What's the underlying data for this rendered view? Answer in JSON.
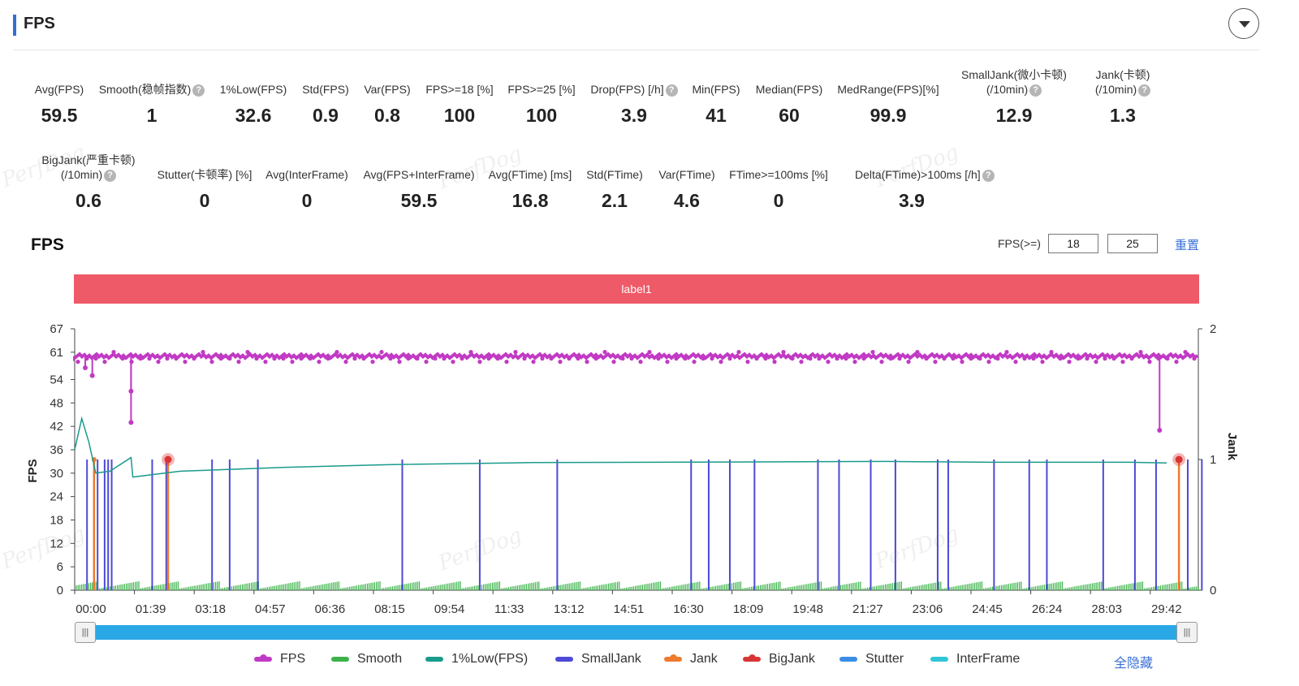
{
  "panel": {
    "title": "FPS"
  },
  "metrics_row1": [
    {
      "label": "Avg(FPS)",
      "value": "59.5",
      "help": false
    },
    {
      "label": "Smooth(稳帧指数)",
      "value": "1",
      "help": true
    },
    {
      "label": "1%Low(FPS)",
      "value": "32.6",
      "help": false
    },
    {
      "label": "Std(FPS)",
      "value": "0.9",
      "help": false
    },
    {
      "label": "Var(FPS)",
      "value": "0.8",
      "help": false
    },
    {
      "label": "FPS>=18 [%]",
      "value": "100",
      "help": false
    },
    {
      "label": "FPS>=25 [%]",
      "value": "100",
      "help": false
    },
    {
      "label": "Drop(FPS) [/h]",
      "value": "3.9",
      "help": true
    },
    {
      "label": "Min(FPS)",
      "value": "41",
      "help": false
    },
    {
      "label": "Median(FPS)",
      "value": "60",
      "help": false
    },
    {
      "label": "MedRange(FPS)[%]",
      "value": "99.9",
      "help": false
    },
    {
      "label": "SmallJank(微小卡顿)",
      "label2": "(/10min)",
      "value": "12.9",
      "help": true
    },
    {
      "label": "Jank(卡顿)",
      "label2": "(/10min)",
      "value": "1.3",
      "help": true
    }
  ],
  "metrics_row2": [
    {
      "label": "BigJank(严重卡顿)",
      "label2": "(/10min)",
      "value": "0.6",
      "help": true
    },
    {
      "label": "Stutter(卡顿率) [%]",
      "value": "0",
      "help": false
    },
    {
      "label": "Avg(InterFrame)",
      "value": "0",
      "help": false
    },
    {
      "label": "Avg(FPS+InterFrame)",
      "value": "59.5",
      "help": false
    },
    {
      "label": "Avg(FTime) [ms]",
      "value": "16.8",
      "help": false
    },
    {
      "label": "Std(FTime)",
      "value": "2.1",
      "help": false
    },
    {
      "label": "Var(FTime)",
      "value": "4.6",
      "help": false
    },
    {
      "label": "FTime>=100ms [%]",
      "value": "0",
      "help": false
    },
    {
      "label": "Delta(FTime)>100ms [/h]",
      "value": "3.9",
      "help": true
    }
  ],
  "chart_section": {
    "title": "FPS",
    "threshold_label": "FPS(>=)",
    "threshold1": "18",
    "threshold2": "25",
    "reset_label": "重置",
    "label_bar": "label1",
    "watermark": "PerfDog",
    "hide_all_label": "全隐藏",
    "help_glyph": "?",
    "slider_glyph": "|||"
  },
  "chart_data": {
    "type": "line",
    "xlabel": "",
    "ylabel": "FPS",
    "y2label": "Jank",
    "x_ticks": [
      "00:00",
      "01:39",
      "03:18",
      "04:57",
      "06:36",
      "08:15",
      "09:54",
      "11:33",
      "13:12",
      "14:51",
      "16:30",
      "18:09",
      "19:48",
      "21:27",
      "23:06",
      "24:45",
      "26:24",
      "28:03",
      "29:42"
    ],
    "y_ticks": [
      0,
      6,
      12,
      18,
      24,
      30,
      36,
      42,
      48,
      54,
      61,
      67
    ],
    "y_range": [
      0,
      67
    ],
    "y2_ticks": [
      0,
      1,
      2
    ],
    "y2_range": [
      0,
      2
    ],
    "series": [
      {
        "name": "FPS",
        "color": "#c13ac4",
        "baseline": 60,
        "dips": [
          [
            0.3,
            57
          ],
          [
            0.5,
            55
          ],
          [
            1.6,
            51
          ],
          [
            1.6,
            43
          ],
          [
            30.8,
            41
          ]
        ]
      },
      {
        "name": "Smooth",
        "color": "#3cb34a",
        "level": 0.6
      },
      {
        "name": "1%Low(FPS)",
        "color": "#1a9a8c",
        "points": [
          [
            0,
            36
          ],
          [
            0.1,
            40
          ],
          [
            0.2,
            44
          ],
          [
            0.4,
            38
          ],
          [
            0.6,
            30
          ],
          [
            1.0,
            30.5
          ],
          [
            1.6,
            34
          ],
          [
            1.65,
            29
          ],
          [
            3,
            30.5
          ],
          [
            6,
            31.5
          ],
          [
            9,
            32.2
          ],
          [
            13,
            32.7
          ],
          [
            20,
            32.9
          ],
          [
            23,
            33
          ],
          [
            26,
            32.8
          ],
          [
            30,
            32.8
          ],
          [
            31,
            32.6
          ]
        ]
      },
      {
        "name": "SmallJank",
        "color": "#4c4ad6",
        "events_min": [
          0.35,
          0.55,
          0.65,
          0.85,
          0.95,
          1.05,
          2.2,
          2.6,
          3.9,
          4.4,
          5.2,
          9.3,
          11.5,
          13.7,
          17.5,
          18.0,
          18.6,
          19.3,
          21.1,
          21.7,
          22.6,
          23.3,
          24.5,
          24.8,
          26.1,
          27.1,
          27.6,
          29.2,
          30.1,
          30.7,
          31.6,
          32.0
        ],
        "value": 1
      },
      {
        "name": "Jank",
        "color": "#ee7a2c",
        "events_min": [
          0.55,
          2.65,
          31.35
        ],
        "value": 1
      },
      {
        "name": "BigJank",
        "color": "#d93434",
        "events_min": [
          2.65,
          31.35
        ],
        "value": 1
      },
      {
        "name": "Stutter",
        "color": "#3a8de6"
      },
      {
        "name": "InterFrame",
        "color": "#2fc7d6"
      }
    ]
  },
  "legend": [
    {
      "name": "FPS",
      "color": "#c13ac4",
      "dot": true
    },
    {
      "name": "Smooth",
      "color": "#3cb34a",
      "dot": false
    },
    {
      "name": "1%Low(FPS)",
      "color": "#1a9a8c",
      "dot": false
    },
    {
      "name": "SmallJank",
      "color": "#4c4ad6",
      "dot": false
    },
    {
      "name": "Jank",
      "color": "#ee7a2c",
      "dot": true
    },
    {
      "name": "BigJank",
      "color": "#d93434",
      "dot": true
    },
    {
      "name": "Stutter",
      "color": "#3a8de6",
      "dot": false
    },
    {
      "name": "InterFrame",
      "color": "#2fc7d6",
      "dot": false
    }
  ]
}
